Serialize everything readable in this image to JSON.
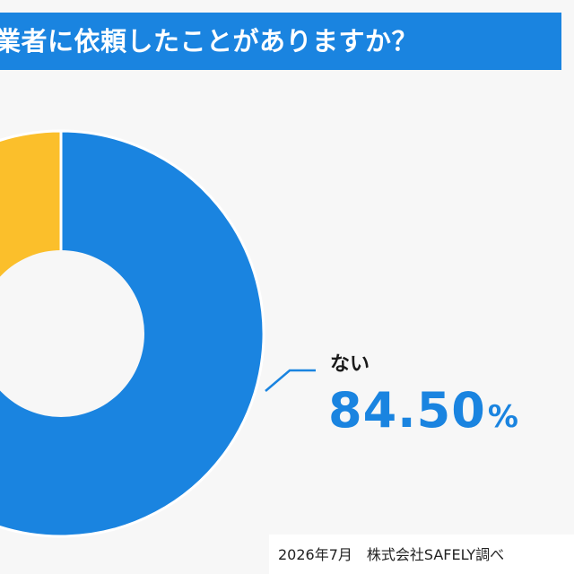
{
  "title": "業者に依頼したことがありますか？",
  "chart_data": {
    "type": "pie",
    "title": "業者に依頼したことがありますか？",
    "slices": [
      {
        "label": "ない",
        "value": 84.5,
        "display": "84.50",
        "color": "#1a84e0"
      },
      {
        "label": "",
        "value": 15.5,
        "display": "",
        "color": "#fbbf2b"
      }
    ],
    "unit": "%",
    "donut": true
  },
  "annotation": {
    "label": "ない",
    "value": "84.50",
    "unit": "%"
  },
  "footer": "2026年7月　株式会社SAFELY調べ",
  "colors": {
    "accent": "#1a84e0",
    "secondary": "#fbbf2b",
    "background": "#f7f7f7"
  }
}
